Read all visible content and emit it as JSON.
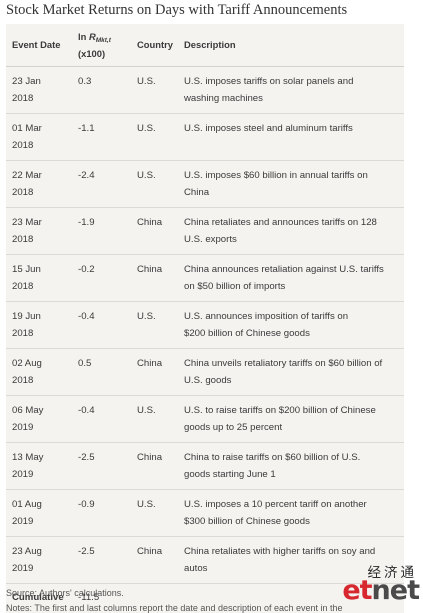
{
  "title": "Stock Market Returns on Days with Tariff Announcements",
  "header": {
    "event_date": "Event Date",
    "ln_r_prefix": "ln ",
    "ln_r_symbol": "R",
    "ln_r_subscript": "Mkt",
    "ln_r_unit": "(x100)",
    "country": "Country",
    "description": "Description"
  },
  "rows": [
    {
      "date_line1": "23 Jan",
      "date_line2": "2018",
      "return": "0.3",
      "country": "U.S.",
      "desc_line1": "U.S. imposes tariffs on solar panels and",
      "desc_line2": "washing machines"
    },
    {
      "date_line1": "01 Mar",
      "date_line2": "2018",
      "return": "-1.1",
      "country": "U.S.",
      "desc_line1": "U.S. imposes steel and aluminum tariffs",
      "desc_line2": ""
    },
    {
      "date_line1": "22 Mar",
      "date_line2": "2018",
      "return": "-2.4",
      "country": "U.S.",
      "desc_line1": "U.S. imposes $60 billion in annual tariffs on",
      "desc_line2": "China"
    },
    {
      "date_line1": "23 Mar",
      "date_line2": "2018",
      "return": "-1.9",
      "country": "China",
      "desc_line1": "China retaliates and announces tariffs on 128",
      "desc_line2": "U.S. exports"
    },
    {
      "date_line1": "15 Jun",
      "date_line2": "2018",
      "return": "-0.2",
      "country": "China",
      "desc_line1": "China announces retaliation against U.S. tariffs",
      "desc_line2": "on $50 billion of imports"
    },
    {
      "date_line1": "19 Jun",
      "date_line2": "2018",
      "return": "-0.4",
      "country": "U.S.",
      "desc_line1": "U.S. announces imposition of tariffs on",
      "desc_line2": "$200 billion of Chinese goods"
    },
    {
      "date_line1": "02 Aug",
      "date_line2": "2018",
      "return": "0.5",
      "country": "China",
      "desc_line1": "China unveils retaliatory tariffs on $60 billion of",
      "desc_line2": "U.S. goods"
    },
    {
      "date_line1": "06 May",
      "date_line2": "2019",
      "return": "-0.4",
      "country": "U.S.",
      "desc_line1": "U.S. to raise tariffs on $200 billion of Chinese",
      "desc_line2": "goods up to 25 percent"
    },
    {
      "date_line1": "13 May",
      "date_line2": "2019",
      "return": "-2.5",
      "country": "China",
      "desc_line1": "China to raise tariffs on $60 billion of U.S.",
      "desc_line2": "goods starting June 1"
    },
    {
      "date_line1": "01 Aug",
      "date_line2": "2019",
      "return": "-0.9",
      "country": "U.S.",
      "desc_line1": "U.S. imposes a 10 percent tariff on another",
      "desc_line2": "$300 billion of Chinese goods"
    },
    {
      "date_line1": "23 Aug",
      "date_line2": "2019",
      "return": "-2.5",
      "country": "China",
      "desc_line1": "China retaliates with higher tariffs on soy and",
      "desc_line2": "autos"
    }
  ],
  "cumulative": {
    "label": "Cumulative",
    "value": "-11.5"
  },
  "source": "Source: Authors' calculations.",
  "notes": "Notes: The first and last columns report the date and description of each event in the",
  "logo": {
    "chinese": "经济通",
    "et": "et",
    "net": "net"
  },
  "colors": {
    "table_background": "#f4f3f0",
    "row_divider": "#dcdad5",
    "logo_red": "#d7282f",
    "logo_gray": "#4a4a4a"
  }
}
